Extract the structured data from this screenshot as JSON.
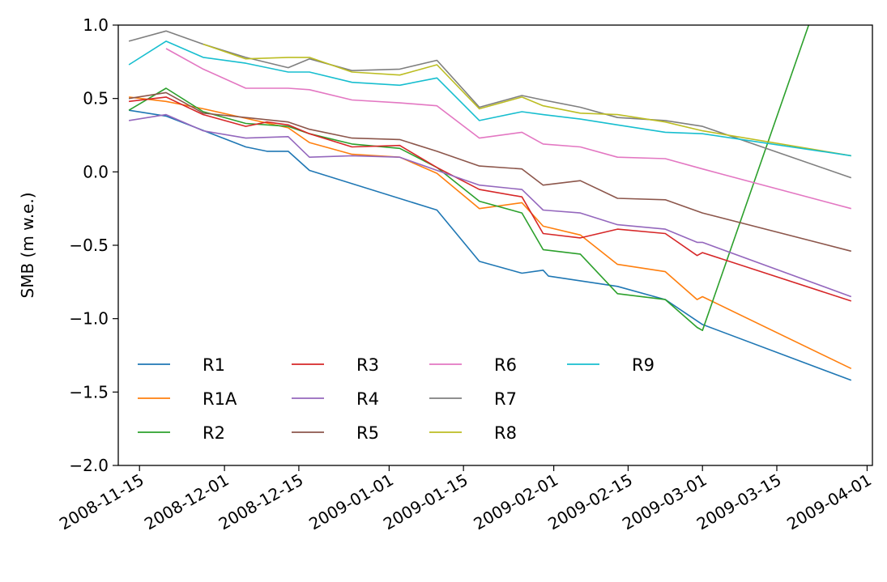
{
  "chart_data": {
    "type": "line",
    "title": "",
    "xlabel": "",
    "ylabel": "SMB (m w.e.)",
    "ylim": [
      -2.0,
      1.0
    ],
    "xlim": [
      "2008-11-11",
      "2009-04-02"
    ],
    "xticks": [
      "2008-11-15",
      "2008-12-01",
      "2008-12-15",
      "2009-01-01",
      "2009-01-15",
      "2009-02-01",
      "2009-02-15",
      "2009-03-01",
      "2009-03-15",
      "2009-04-01"
    ],
    "yticks": [
      "1.0",
      "0.5",
      "0.0",
      "−0.5",
      "−1.0",
      "−1.5",
      "−2.0"
    ],
    "grid": false,
    "legend": {
      "placement": "lower-left",
      "columns": 4
    },
    "series": [
      {
        "name": "R1",
        "color": "#1f77b4",
        "x": [
          "2008-11-13",
          "2008-11-20",
          "2008-12-05",
          "2008-12-09",
          "2008-12-13",
          "2008-12-17",
          "2009-01-10",
          "2009-01-18",
          "2009-01-26",
          "2009-01-30",
          "2009-01-31",
          "2009-02-13",
          "2009-02-22",
          "2009-03-01",
          "2009-03-29"
        ],
        "y": [
          0.42,
          0.38,
          0.17,
          0.14,
          0.14,
          0.01,
          -0.26,
          -0.61,
          -0.69,
          -0.67,
          -0.71,
          -0.78,
          -0.87,
          -1.04,
          -1.42
        ]
      },
      {
        "name": "R1A",
        "color": "#ff7f0e",
        "x": [
          "2008-11-13",
          "2008-11-20",
          "2008-11-27",
          "2008-12-13",
          "2008-12-17",
          "2008-12-25",
          "2009-01-03",
          "2009-01-10",
          "2009-01-18",
          "2009-01-26",
          "2009-01-30",
          "2009-02-06",
          "2009-02-13",
          "2009-02-22",
          "2009-02-28",
          "2009-03-01",
          "2009-03-29"
        ],
        "y": [
          0.51,
          0.48,
          0.43,
          0.3,
          0.2,
          0.12,
          0.1,
          -0.01,
          -0.25,
          -0.21,
          -0.37,
          -0.43,
          -0.63,
          -0.68,
          -0.87,
          -0.85,
          -1.34
        ]
      },
      {
        "name": "R2",
        "color": "#2ca02c",
        "x": [
          "2008-11-13",
          "2008-11-20",
          "2008-11-27",
          "2008-12-05",
          "2008-12-13",
          "2008-12-17",
          "2008-12-25",
          "2009-01-03",
          "2009-01-10",
          "2009-01-18",
          "2009-01-26",
          "2009-01-30",
          "2009-02-06",
          "2009-02-13",
          "2009-02-22",
          "2009-02-28",
          "2009-03-01",
          "2009-03-21"
        ],
        "y": [
          0.42,
          0.57,
          0.41,
          0.33,
          0.31,
          0.26,
          0.19,
          0.16,
          0.03,
          -0.2,
          -0.28,
          -0.53,
          -0.56,
          -0.83,
          -0.87,
          -1.06,
          -1.08,
          1.0
        ]
      },
      {
        "name": "R3",
        "color": "#d62728",
        "x": [
          "2008-11-13",
          "2008-11-20",
          "2008-11-27",
          "2008-12-05",
          "2008-12-09",
          "2008-12-13",
          "2008-12-17",
          "2008-12-25",
          "2009-01-03",
          "2009-01-10",
          "2009-01-18",
          "2009-01-26",
          "2009-01-30",
          "2009-02-06",
          "2009-02-13",
          "2009-02-22",
          "2009-02-28",
          "2009-03-01",
          "2009-03-29"
        ],
        "y": [
          0.48,
          0.51,
          0.39,
          0.31,
          0.34,
          0.32,
          0.26,
          0.17,
          0.18,
          0.03,
          -0.12,
          -0.17,
          -0.42,
          -0.45,
          -0.39,
          -0.42,
          -0.57,
          -0.55,
          -0.88
        ]
      },
      {
        "name": "R4",
        "color": "#9467bd",
        "x": [
          "2008-11-13",
          "2008-11-20",
          "2008-11-27",
          "2008-12-05",
          "2008-12-13",
          "2008-12-17",
          "2008-12-25",
          "2009-01-03",
          "2009-01-10",
          "2009-01-18",
          "2009-01-26",
          "2009-01-30",
          "2009-02-06",
          "2009-02-13",
          "2009-02-22",
          "2009-02-28",
          "2009-03-01",
          "2009-03-29"
        ],
        "y": [
          0.35,
          0.39,
          0.28,
          0.23,
          0.24,
          0.1,
          0.11,
          0.1,
          0.01,
          -0.09,
          -0.12,
          -0.26,
          -0.28,
          -0.36,
          -0.39,
          -0.48,
          -0.48,
          -0.85
        ]
      },
      {
        "name": "R5",
        "color": "#8c564b",
        "x": [
          "2008-11-13",
          "2008-11-20",
          "2008-11-27",
          "2008-12-05",
          "2008-12-13",
          "2008-12-17",
          "2008-12-25",
          "2009-01-03",
          "2009-01-10",
          "2009-01-18",
          "2009-01-26",
          "2009-01-30",
          "2009-02-06",
          "2009-02-13",
          "2009-02-22",
          "2009-03-01",
          "2009-03-29"
        ],
        "y": [
          0.5,
          0.54,
          0.4,
          0.37,
          0.34,
          0.29,
          0.23,
          0.22,
          0.14,
          0.04,
          0.02,
          -0.09,
          -0.06,
          -0.18,
          -0.19,
          -0.28,
          -0.54
        ]
      },
      {
        "name": "R6",
        "color": "#e377c2",
        "x": [
          "2008-11-20",
          "2008-11-27",
          "2008-12-05",
          "2008-12-13",
          "2008-12-17",
          "2008-12-25",
          "2009-01-03",
          "2009-01-10",
          "2009-01-18",
          "2009-01-26",
          "2009-01-30",
          "2009-02-06",
          "2009-02-13",
          "2009-02-22",
          "2009-03-01",
          "2009-03-29"
        ],
        "y": [
          0.84,
          0.7,
          0.57,
          0.57,
          0.56,
          0.49,
          0.47,
          0.45,
          0.23,
          0.27,
          0.19,
          0.17,
          0.1,
          0.09,
          0.02,
          -0.25
        ]
      },
      {
        "name": "R7",
        "color": "#7f7f7f",
        "x": [
          "2008-11-13",
          "2008-11-20",
          "2008-11-27",
          "2008-12-05",
          "2008-12-13",
          "2008-12-17",
          "2008-12-25",
          "2009-01-03",
          "2009-01-10",
          "2009-01-18",
          "2009-01-26",
          "2009-01-30",
          "2009-02-06",
          "2009-02-13",
          "2009-02-22",
          "2009-03-01",
          "2009-03-29"
        ],
        "y": [
          0.89,
          0.96,
          0.87,
          0.78,
          0.71,
          0.77,
          0.69,
          0.7,
          0.76,
          0.44,
          0.52,
          0.49,
          0.44,
          0.37,
          0.35,
          0.31,
          -0.04
        ]
      },
      {
        "name": "R8",
        "color": "#bcbd22",
        "x": [
          "2008-11-27",
          "2008-12-05",
          "2008-12-13",
          "2008-12-17",
          "2008-12-25",
          "2009-01-03",
          "2009-01-10",
          "2009-01-18",
          "2009-01-26",
          "2009-01-30",
          "2009-02-06",
          "2009-02-13",
          "2009-02-22",
          "2009-03-01",
          "2009-03-29"
        ],
        "y": [
          0.87,
          0.77,
          0.78,
          0.78,
          0.68,
          0.66,
          0.73,
          0.43,
          0.51,
          0.45,
          0.4,
          0.39,
          0.34,
          0.28,
          0.11
        ]
      },
      {
        "name": "R9",
        "color": "#17becf",
        "x": [
          "2008-11-13",
          "2008-11-20",
          "2008-11-27",
          "2008-12-05",
          "2008-12-13",
          "2008-12-17",
          "2008-12-25",
          "2009-01-03",
          "2009-01-10",
          "2009-01-18",
          "2009-01-26",
          "2009-01-30",
          "2009-02-06",
          "2009-02-13",
          "2009-02-22",
          "2009-03-01",
          "2009-03-29"
        ],
        "y": [
          0.73,
          0.89,
          0.78,
          0.74,
          0.68,
          0.68,
          0.61,
          0.59,
          0.64,
          0.35,
          0.41,
          0.39,
          0.36,
          0.32,
          0.27,
          0.26,
          0.11
        ]
      }
    ]
  }
}
